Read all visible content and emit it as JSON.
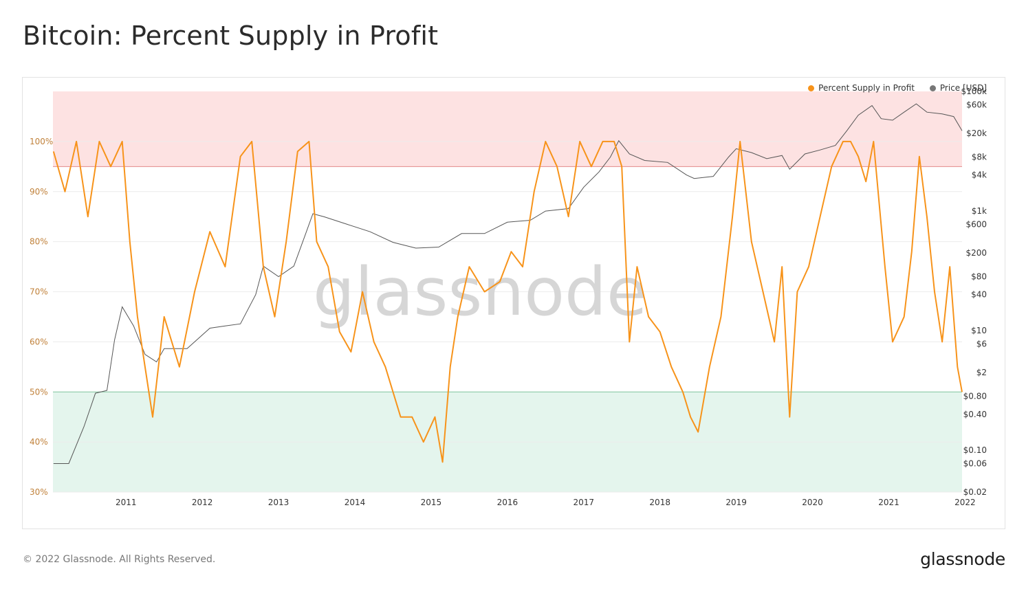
{
  "title": "Bitcoin: Percent Supply in Profit",
  "footer": {
    "copyright": "© 2022 Glassnode. All Rights Reserved.",
    "logo": "glassnode"
  },
  "watermark": "glassnode",
  "legend": [
    {
      "label": "Percent Supply in Profit",
      "color": "#f7931a"
    },
    {
      "label": "Price [USD]",
      "color": "#777777"
    }
  ],
  "chart_data": {
    "type": "line",
    "legend_position": "top-right",
    "grid": true,
    "x_ticks": [
      "2011",
      "2012",
      "2013",
      "2014",
      "2015",
      "2016",
      "2017",
      "2018",
      "2019",
      "2020",
      "2021",
      "2022"
    ],
    "xlim": [
      "2010-07-18",
      "2022-06-18"
    ],
    "y_left": {
      "ticks": [
        "30%",
        "40%",
        "50%",
        "60%",
        "70%",
        "80%",
        "90%",
        "100%"
      ],
      "ylim": [
        30,
        110
      ]
    },
    "y_right": {
      "scale": "log",
      "ticks": [
        "$0.02",
        "$0.06",
        "$0.10",
        "$0.40",
        "$0.80",
        "$2",
        "$6",
        "$10",
        "$40",
        "$80",
        "$200",
        "$600",
        "$1k",
        "$4k",
        "$8k",
        "$20k",
        "$60k",
        "$100k"
      ],
      "ylim": [
        0.02,
        100000
      ]
    },
    "bands": [
      {
        "from": 95,
        "to": 110,
        "color": "#fde2e2"
      },
      {
        "from": 30,
        "to": 50,
        "color": "#e4f5ed"
      }
    ],
    "threshold_lines": [
      {
        "value": 95,
        "color": "#e38a8a"
      },
      {
        "value": 50,
        "color": "#7fc7a0"
      }
    ],
    "series": [
      {
        "name": "Percent Supply in Profit",
        "axis": "left",
        "color": "#f7931a",
        "x": [
          2010.55,
          2010.7,
          2010.85,
          2011.0,
          2011.15,
          2011.3,
          2011.45,
          2011.55,
          2011.65,
          2011.75,
          2011.85,
          2012.0,
          2012.2,
          2012.4,
          2012.6,
          2012.8,
          2013.0,
          2013.15,
          2013.3,
          2013.45,
          2013.6,
          2013.75,
          2013.9,
          2014.0,
          2014.15,
          2014.3,
          2014.45,
          2014.6,
          2014.75,
          2014.9,
          2015.0,
          2015.1,
          2015.25,
          2015.4,
          2015.55,
          2015.65,
          2015.75,
          2015.85,
          2016.0,
          2016.2,
          2016.4,
          2016.55,
          2016.7,
          2016.85,
          2017.0,
          2017.15,
          2017.3,
          2017.45,
          2017.6,
          2017.75,
          2017.9,
          2018.0,
          2018.1,
          2018.2,
          2018.35,
          2018.5,
          2018.65,
          2018.8,
          2018.9,
          2019.0,
          2019.15,
          2019.3,
          2019.45,
          2019.55,
          2019.7,
          2019.85,
          2020.0,
          2020.1,
          2020.2,
          2020.3,
          2020.45,
          2020.6,
          2020.75,
          2020.9,
          2021.0,
          2021.1,
          2021.2,
          2021.3,
          2021.45,
          2021.55,
          2021.7,
          2021.8,
          2021.9,
          2022.0,
          2022.1,
          2022.2,
          2022.3,
          2022.4,
          2022.46
        ],
        "y": [
          98,
          90,
          100,
          85,
          100,
          95,
          100,
          80,
          65,
          55,
          45,
          65,
          55,
          70,
          82,
          75,
          97,
          100,
          75,
          65,
          80,
          98,
          100,
          80,
          75,
          62,
          58,
          70,
          60,
          55,
          50,
          45,
          45,
          40,
          45,
          36,
          55,
          65,
          75,
          70,
          72,
          78,
          75,
          90,
          100,
          95,
          85,
          100,
          95,
          100,
          100,
          95,
          60,
          75,
          65,
          62,
          55,
          50,
          45,
          42,
          55,
          65,
          85,
          100,
          80,
          70,
          60,
          75,
          45,
          70,
          75,
          85,
          95,
          100,
          100,
          97,
          92,
          100,
          75,
          60,
          65,
          78,
          97,
          85,
          70,
          60,
          75,
          55,
          50
        ]
      },
      {
        "name": "Price [USD]",
        "axis": "right",
        "color": "#555555",
        "x": [
          2010.55,
          2010.75,
          2010.95,
          2011.1,
          2011.25,
          2011.35,
          2011.45,
          2011.6,
          2011.75,
          2011.9,
          2012.0,
          2012.3,
          2012.6,
          2012.8,
          2013.0,
          2013.2,
          2013.3,
          2013.5,
          2013.7,
          2013.85,
          2013.95,
          2014.1,
          2014.4,
          2014.7,
          2015.0,
          2015.3,
          2015.6,
          2015.9,
          2016.2,
          2016.5,
          2016.8,
          2017.0,
          2017.3,
          2017.5,
          2017.7,
          2017.85,
          2017.96,
          2018.1,
          2018.3,
          2018.6,
          2018.85,
          2018.95,
          2019.2,
          2019.4,
          2019.5,
          2019.7,
          2019.9,
          2020.1,
          2020.2,
          2020.4,
          2020.6,
          2020.8,
          2020.95,
          2021.1,
          2021.28,
          2021.4,
          2021.55,
          2021.7,
          2021.86,
          2022.0,
          2022.2,
          2022.35,
          2022.46
        ],
        "y": [
          0.06,
          0.06,
          0.25,
          0.9,
          1,
          7,
          25,
          12,
          4,
          3,
          5,
          5,
          11,
          12,
          13,
          40,
          120,
          80,
          120,
          400,
          900,
          800,
          600,
          450,
          300,
          240,
          250,
          420,
          420,
          650,
          700,
          1000,
          1100,
          2500,
          4500,
          8000,
          15000,
          9000,
          7000,
          6500,
          4000,
          3500,
          3800,
          8000,
          11000,
          9500,
          7500,
          8500,
          5000,
          9000,
          10500,
          12500,
          22000,
          40000,
          58000,
          35000,
          33000,
          45000,
          62000,
          45000,
          42000,
          38000,
          22000
        ]
      }
    ]
  }
}
